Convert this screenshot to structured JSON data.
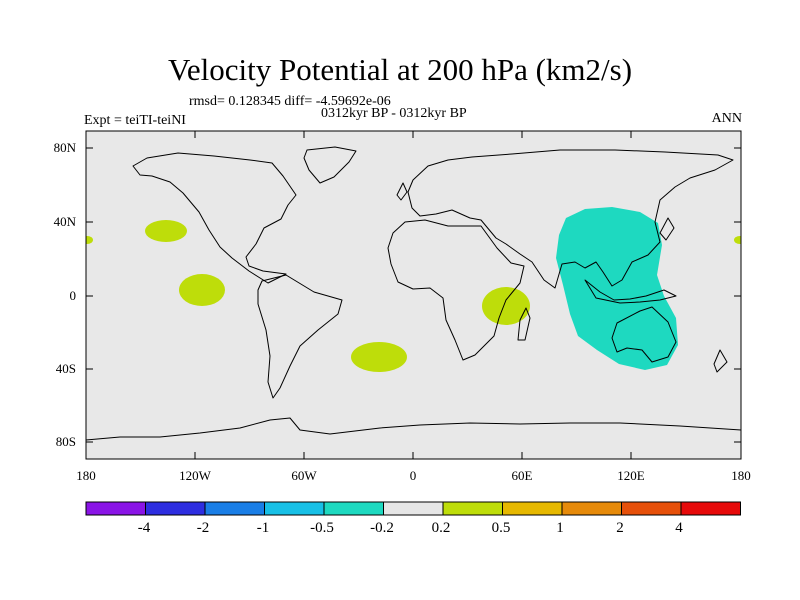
{
  "title": "Velocity Potential at 200 hPa (km2/s)",
  "rmsd_text": "rmsd= 0.128345 diff= -4.59692e-06",
  "experiment": "Expt = teiTI-teiNI",
  "period": "0312kyr BP - 0312kyr BP",
  "season": "ANN",
  "map": {
    "projection": "cylindrical equidistant",
    "background_color": "#e8e8e8",
    "coastline_color": "#000000",
    "lat_ticks": [
      "80N",
      "40N",
      "0",
      "40S",
      "80S"
    ],
    "lon_ticks": [
      "180",
      "120W",
      "60W",
      "0",
      "60E",
      "120E",
      "180"
    ],
    "anomaly_regions": [
      {
        "name": "north-pacific-positive",
        "category": "0.2 to 0.5",
        "center_lon": -128,
        "center_lat": 32
      },
      {
        "name": "tropical-pacific-positive",
        "category": "0.2 to 0.5",
        "center_lon": -117,
        "center_lat": 3
      },
      {
        "name": "south-atlantic-positive",
        "category": "0.2 to 0.5",
        "center_lon": -29,
        "center_lat": -30
      },
      {
        "name": "east-africa-positive",
        "category": "0.2 to 0.5",
        "center_lon": 51,
        "center_lat": -4
      },
      {
        "name": "indo-pacific-negative",
        "category": "-0.5 to -0.2",
        "center_lon": 111,
        "center_lat": 4
      }
    ]
  },
  "colorbar": {
    "labels": [
      "-4",
      "-2",
      "-1",
      "-0.5",
      "-0.2",
      "0.2",
      "0.5",
      "1",
      "2",
      "4"
    ],
    "colors": [
      "#8a14e6",
      "#2e2ee0",
      "#1a7ee6",
      "#18c0e6",
      "#1ed9c0",
      "#e6e6e6",
      "#bedd0a",
      "#e6b800",
      "#e68a0a",
      "#e6500a",
      "#e60a0a"
    ]
  }
}
